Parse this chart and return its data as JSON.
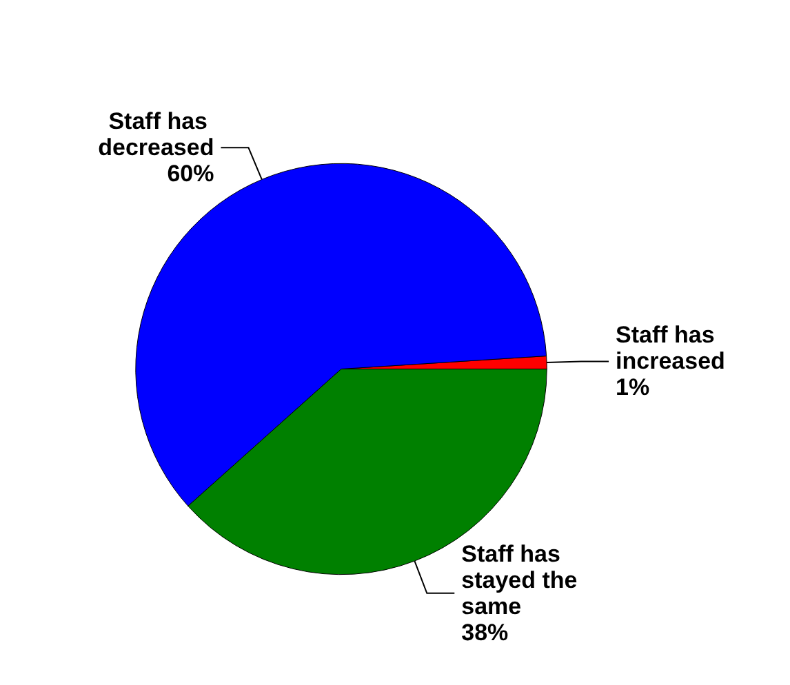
{
  "chart_data": {
    "type": "pie",
    "categories": [
      "Staff has increased",
      "Staff has decreased",
      "Staff has stayed the same"
    ],
    "values": [
      1,
      60,
      38
    ],
    "colors": [
      "#ff0000",
      "#0000ff",
      "#008000"
    ],
    "value_labels": [
      "1%",
      "60%",
      "38%"
    ],
    "legend": false
  }
}
